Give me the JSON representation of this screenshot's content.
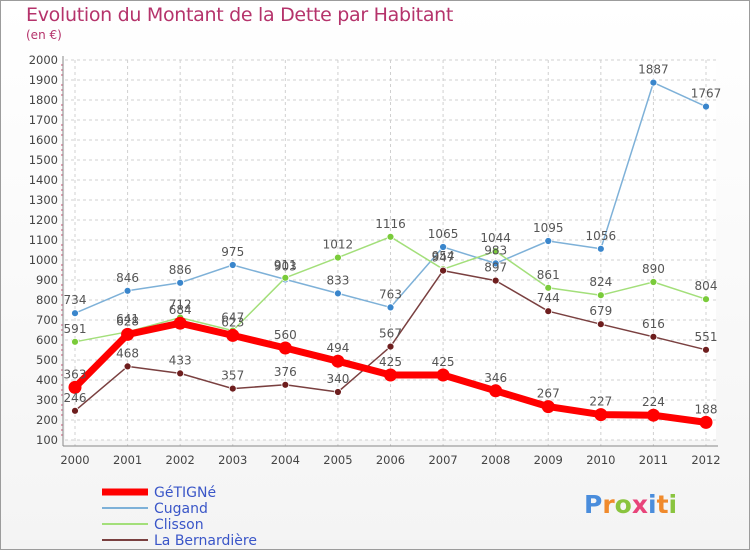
{
  "title": "Evolution du Montant de la Dette par Habitant",
  "subtitle": "(en €)",
  "logo": {
    "letters": [
      "P",
      "r",
      "o",
      "x",
      "i",
      "t",
      "i"
    ],
    "colors": [
      "#4a8ddc",
      "#f08a2c",
      "#8ac43f",
      "#e8447a",
      "#4a8ddc",
      "#f08a2c",
      "#8ac43f"
    ]
  },
  "chart_data": {
    "type": "line",
    "x": [
      "2000",
      "2001",
      "2002",
      "2003",
      "2004",
      "2005",
      "2006",
      "2007",
      "2008",
      "2009",
      "2010",
      "2011",
      "2012"
    ],
    "ylim": [
      100,
      2000
    ],
    "yticks": [
      "100",
      "200",
      "300",
      "400",
      "500",
      "600",
      "700",
      "800",
      "900",
      "1000",
      "1100",
      "1200",
      "1300",
      "1400",
      "1500",
      "1600",
      "1700",
      "1800",
      "1900",
      "2000"
    ],
    "grid": true,
    "legend_position": "bottom-left",
    "series": [
      {
        "name": "GéTIGNé",
        "color": "#ff0000",
        "marker": "#ff0000",
        "width": 7,
        "values": [
          363,
          628,
          684,
          623,
          560,
          494,
          425,
          425,
          346,
          267,
          227,
          224,
          188
        ],
        "labels": [
          "363",
          "628",
          "684",
          "623",
          "560",
          "494",
          "425",
          "425",
          "346",
          "267",
          "227",
          "224",
          "188"
        ]
      },
      {
        "name": "Cugand",
        "color": "#7eb1d8",
        "marker": "#3a86cc",
        "width": 1.5,
        "values": [
          734,
          846,
          886,
          975,
          903,
          833,
          763,
          1065,
          983,
          1095,
          1056,
          1887,
          1767
        ],
        "labels": [
          "734",
          "846",
          "886",
          "975",
          "903",
          "833",
          "763",
          "1065",
          "983",
          "1095",
          "1056",
          "1887",
          "1767"
        ]
      },
      {
        "name": "Clisson",
        "color": "#a3df7a",
        "marker": "#7acb3a",
        "width": 1.5,
        "values": [
          591,
          641,
          712,
          647,
          911,
          1012,
          1116,
          954,
          1044,
          861,
          824,
          890,
          804
        ],
        "labels": [
          "591",
          "641",
          "712",
          "647",
          "911",
          "1012",
          "1116",
          "954",
          "1044",
          "861",
          "824",
          "890",
          "804"
        ]
      },
      {
        "name": "La Bernardière",
        "color": "#7a4040",
        "marker": "#6e1e1e",
        "width": 1.5,
        "values": [
          246,
          468,
          433,
          357,
          376,
          340,
          567,
          947,
          897,
          744,
          679,
          616,
          551
        ],
        "labels": [
          "246",
          "468",
          "433",
          "357",
          "376",
          "340",
          "567",
          "947",
          "897",
          "744",
          "679",
          "616",
          "551"
        ]
      }
    ]
  }
}
